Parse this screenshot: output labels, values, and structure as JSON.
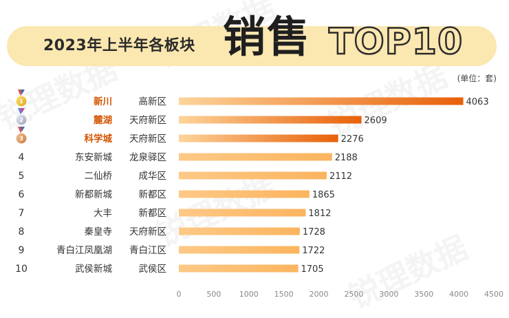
{
  "header": {
    "title_left": "2023年上半年各板块",
    "title_big": "销售",
    "title_top": "TOP10"
  },
  "unit_label": "(单位：套)",
  "watermark": "锐理数据",
  "colors": {
    "bar_start": "#fdd49a",
    "bar_end": "#e8600a",
    "bar_plain": "#fbb45e",
    "highlight_text": "#d35400",
    "value_text": "#333333",
    "banner": "#fbe7b0"
  },
  "chart_data": {
    "type": "bar",
    "orientation": "horizontal",
    "title": "2023年上半年各板块销售TOP10",
    "unit": "(单位：套)",
    "ranks": [
      "1",
      "2",
      "3",
      "4",
      "5",
      "6",
      "7",
      "8",
      "9",
      "10"
    ],
    "medal_ranks": [
      "1",
      "2",
      "3"
    ],
    "categories": [
      "新川",
      "麓湖",
      "科学城",
      "东安新城",
      "二仙桥",
      "新都新城",
      "大丰",
      "秦皇寺",
      "青白江凤凰湖",
      "武侯新城"
    ],
    "districts": [
      "高新区",
      "天府新区",
      "天府新区",
      "龙泉驿区",
      "成华区",
      "新都区",
      "新都区",
      "天府新区",
      "青白江区",
      "武侯区"
    ],
    "values": [
      4063,
      2609,
      2276,
      2188,
      2112,
      1865,
      1812,
      1728,
      1722,
      1705
    ],
    "xlim": [
      0,
      4500
    ],
    "xticks": [
      0,
      500,
      1000,
      1500,
      2000,
      2500,
      3000,
      3500,
      4000,
      4500
    ],
    "grid": false,
    "highlight_top": 3
  }
}
